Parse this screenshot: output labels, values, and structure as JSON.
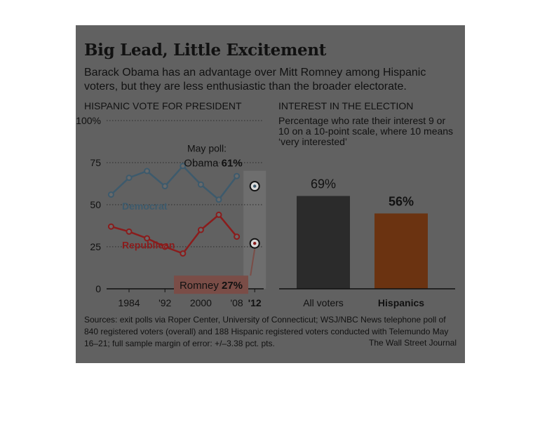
{
  "title": "Big Lead, Little Excitement",
  "subtitle": "Barack Obama has an advantage over Mitt Romney among Hispanic voters, but they are less enthusiastic than the broader electorate.",
  "left_chart_title": "HISPANIC VOTE FOR PRESIDENT",
  "right_chart_title": "INTEREST IN THE ELECTION",
  "right_chart_desc": "Percentage who rate their interest 9 or 10 on a 10-point scale, where 10 means ‘very interested’",
  "sources": "Sources: exit polls via Roper Center, University of Connecticut; WSJ/NBC News telephone poll of 840 registered voters (overall) and 188 Hispanic registered voters conducted with Telemundo May 16–21; full sample margin of error: +/–3.38 pct. pts.",
  "credit": "The Wall Street Journal",
  "colors": {
    "panel": "#616161",
    "democrat": "#3d5a6c",
    "republican": "#8a1c1c",
    "all_voters_bar": "#2b2b2b",
    "hispanics_bar": "#6b3311"
  },
  "chart_data": [
    {
      "type": "line",
      "title": "HISPANIC VOTE FOR PRESIDENT",
      "ylim": [
        0,
        100
      ],
      "yticks": [
        0,
        25,
        50,
        75,
        100
      ],
      "ytick_labels": [
        "0",
        "25",
        "50",
        "75",
        "100%"
      ],
      "xlim": [
        1979,
        2014
      ],
      "xticks": [
        1984,
        1992,
        2000,
        2008,
        2012
      ],
      "xtick_labels": [
        "1984",
        "'92",
        "2000",
        "'08",
        "'12"
      ],
      "series": [
        {
          "name": "Democrat",
          "x": [
            1980,
            1984,
            1988,
            1992,
            1996,
            2000,
            2004,
            2008
          ],
          "y": [
            56,
            66,
            70,
            61,
            73,
            62,
            53,
            67
          ]
        },
        {
          "name": "Republican",
          "x": [
            1980,
            1984,
            1988,
            1992,
            1996,
            2000,
            2004,
            2008
          ],
          "y": [
            37,
            34,
            30,
            25,
            21,
            35,
            44,
            31
          ]
        }
      ],
      "poll": {
        "label": "May poll:",
        "x": 2012,
        "obama": {
          "name": "Obama",
          "value": 61,
          "value_label": "61%"
        },
        "romney": {
          "name": "Romney",
          "value": 27,
          "value_label": "27%"
        }
      }
    },
    {
      "type": "bar",
      "title": "INTEREST IN THE ELECTION",
      "ylim": [
        0,
        100
      ],
      "categories": [
        "All voters",
        "Hispanics"
      ],
      "values": [
        69,
        56
      ],
      "value_labels": [
        "69%",
        "56%"
      ]
    }
  ]
}
